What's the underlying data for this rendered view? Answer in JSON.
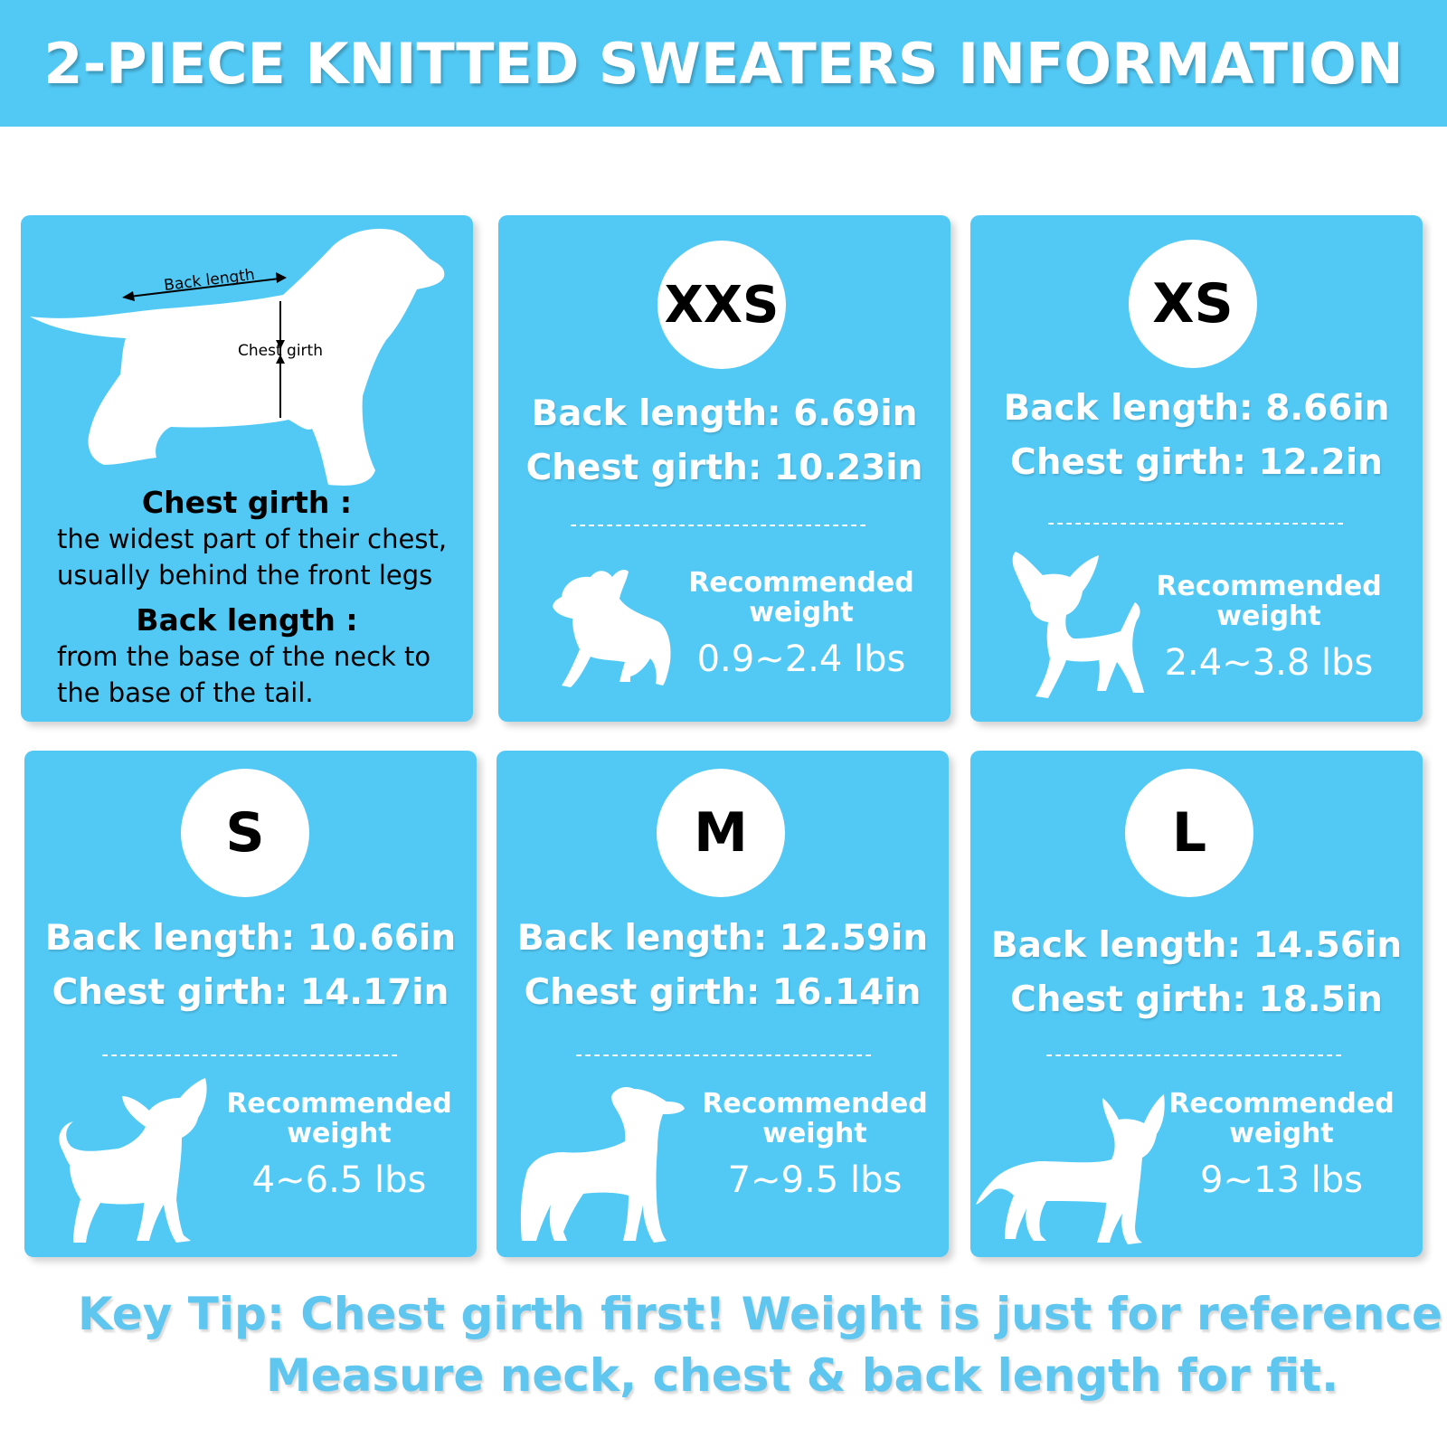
{
  "title": "2-PIECE KNITTED SWEATERS INFORMATION",
  "colors": {
    "accent": "#52c9f5",
    "badge": "#ffffff",
    "tip_text": "#5fc6f0"
  },
  "guide": {
    "diagram_back_label": "Back length",
    "diagram_chest_label": "Chest girth",
    "chest_heading": "Chest girth :",
    "chest_line1": "the widest part of their chest,",
    "chest_line2": "usually behind the front legs",
    "back_heading": "Back length :",
    "back_line1": "from the base of the neck to",
    "back_line2": "the base of the tail."
  },
  "sizes": [
    {
      "size": "XXS",
      "back": "Back length: 6.69in",
      "chest": "Chest girth: 10.23in",
      "rec_label_1": "Recommended",
      "rec_label_2": "weight",
      "weight": "0.9~2.4 lbs",
      "icon": "puppy-silhouette-icon"
    },
    {
      "size": "XS",
      "back": "Back length: 8.66in",
      "chest": "Chest girth: 12.2in",
      "rec_label_1": "Recommended",
      "rec_label_2": "weight",
      "weight": "2.4~3.8 lbs",
      "icon": "chihuahua-sitting-icon"
    },
    {
      "size": "S",
      "back": "Back length: 10.66in",
      "chest": "Chest girth: 14.17in",
      "rec_label_1": "Recommended",
      "rec_label_2": "weight",
      "weight": "4~6.5 lbs",
      "icon": "chihuahua-standing-icon"
    },
    {
      "size": "M",
      "back": "Back length: 12.59in",
      "chest": "Chest girth: 16.14in",
      "rec_label_1": "Recommended",
      "rec_label_2": "weight",
      "weight": "7~9.5 lbs",
      "icon": "small-dog-standing-icon"
    },
    {
      "size": "L",
      "back": "Back length: 14.56in",
      "chest": "Chest girth: 18.5in",
      "rec_label_1": "Recommended",
      "rec_label_2": "weight",
      "weight": "9~13 lbs",
      "icon": "large-chihuahua-standing-icon"
    }
  ],
  "tip": {
    "line1": "Key Tip: Chest girth first! Weight is just for reference.",
    "line2": "Measure neck, chest & back length for fit."
  }
}
